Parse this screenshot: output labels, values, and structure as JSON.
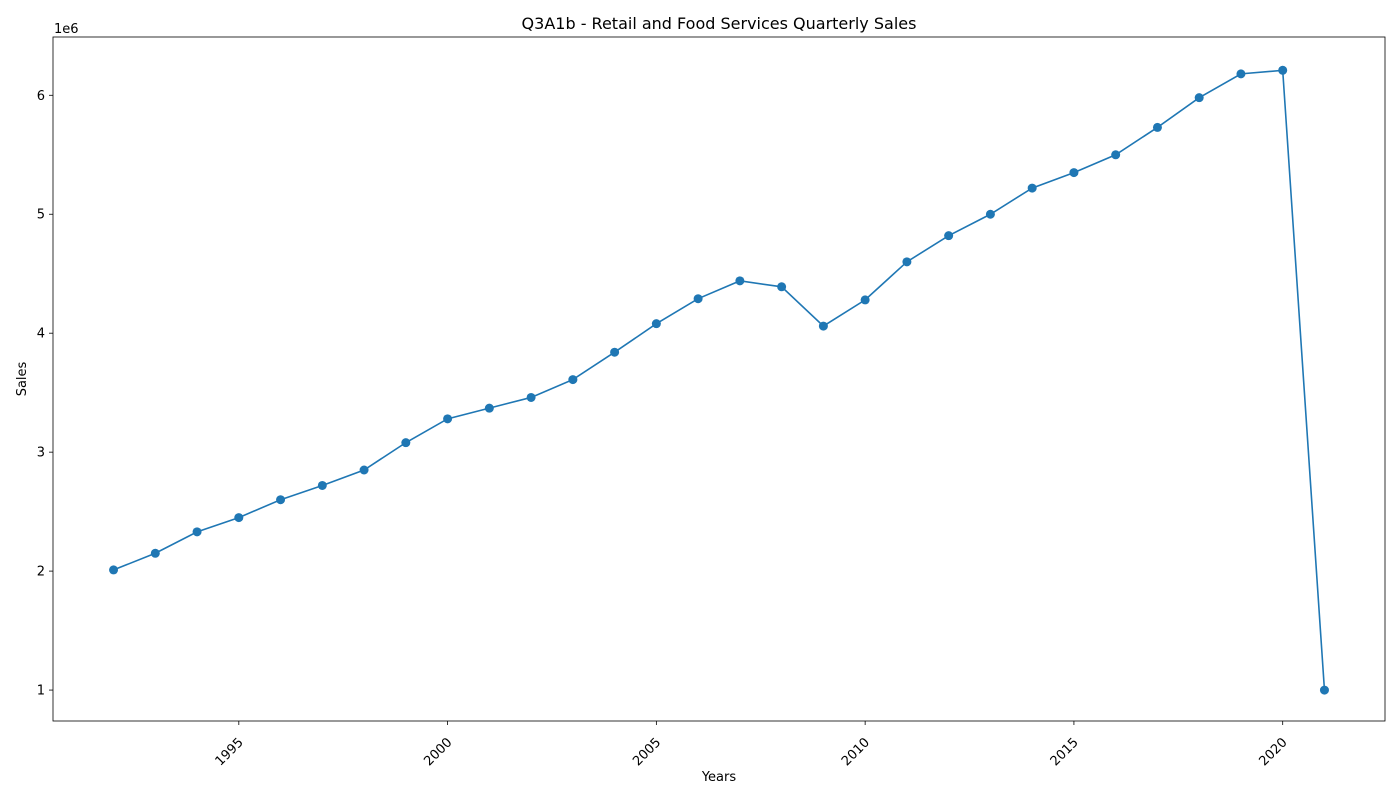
{
  "chart_data": {
    "type": "line",
    "title": "Q3A1b - Retail and Food Services Quarterly Sales",
    "xlabel": "Years",
    "ylabel": "Sales",
    "y_offset_label": "1e6",
    "xlim": [
      1990.55,
      2022.45
    ],
    "ylim": [
      0.74,
      6.49
    ],
    "y_scale_factor": 1000000,
    "x_ticks": [
      1995,
      2000,
      2005,
      2010,
      2015,
      2020
    ],
    "y_ticks": [
      1,
      2,
      3,
      4,
      5,
      6
    ],
    "grid": false,
    "legend": "none",
    "color": "#1f77b4",
    "marker": "circle",
    "series": [
      {
        "x": [
          1992,
          1993,
          1994,
          1995,
          1996,
          1997,
          1998,
          1999,
          2000,
          2001,
          2002,
          2003,
          2004,
          2005,
          2006,
          2007,
          2008,
          2009,
          2010,
          2011,
          2012,
          2013,
          2014,
          2015,
          2016,
          2017,
          2018,
          2019,
          2020,
          2021
        ],
        "values": [
          2.01,
          2.15,
          2.33,
          2.45,
          2.6,
          2.72,
          2.85,
          3.08,
          3.28,
          3.37,
          3.46,
          3.61,
          3.84,
          4.08,
          4.29,
          4.44,
          4.39,
          4.06,
          4.28,
          4.6,
          4.82,
          5.0,
          5.22,
          5.35,
          5.5,
          5.73,
          5.98,
          6.18,
          6.21,
          1.0
        ]
      }
    ]
  }
}
